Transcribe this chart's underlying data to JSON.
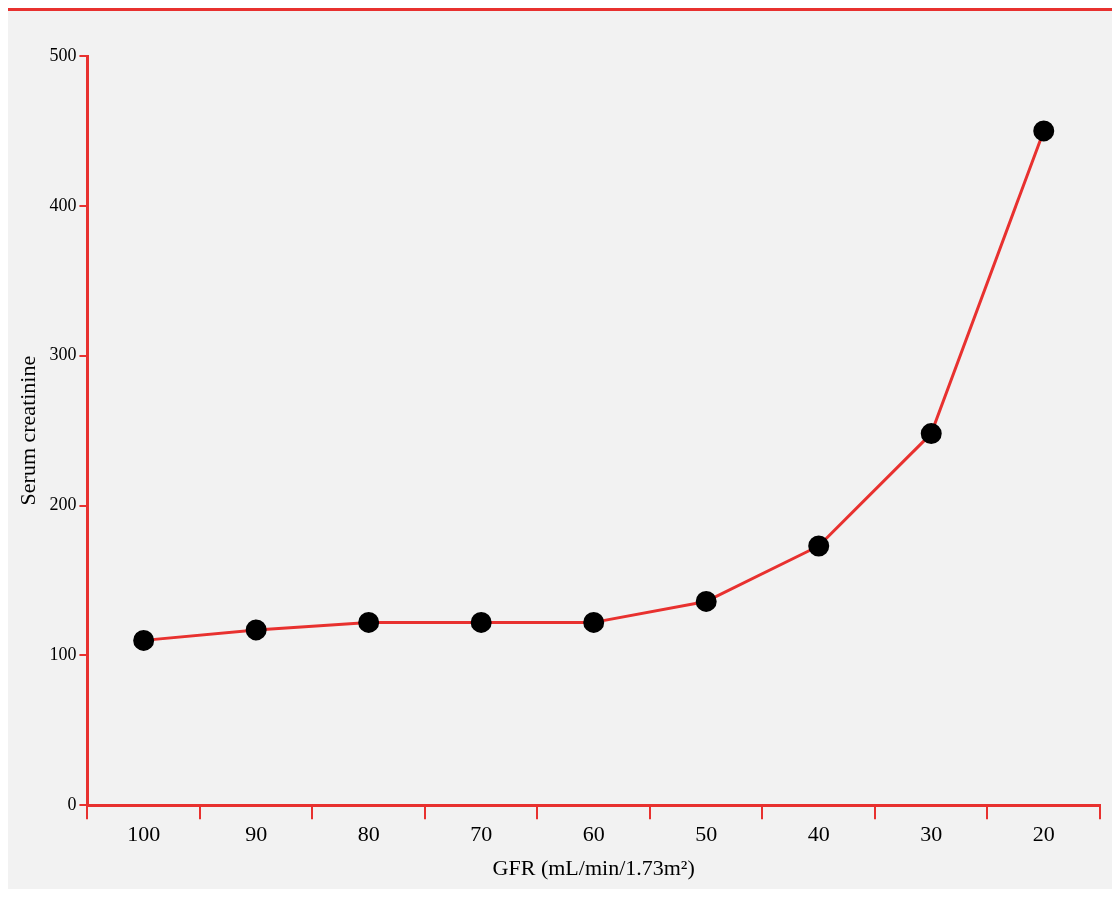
{
  "chart_data": {
    "type": "line",
    "xlabel": "GFR (mL/min/1.73m²)",
    "ylabel": "Serum creatinine",
    "categories": [
      "100",
      "90",
      "80",
      "70",
      "60",
      "50",
      "40",
      "30",
      "20"
    ],
    "series": [
      {
        "color": "#e8312f",
        "values": [
          110,
          117,
          122,
          122,
          122,
          136,
          173,
          248,
          450
        ]
      }
    ],
    "ylim": [
      0,
      500
    ],
    "yticks": [
      0,
      100,
      200,
      300,
      400,
      500
    ],
    "grid": false,
    "legend": false,
    "marker": "circle",
    "line_style": "solid"
  }
}
